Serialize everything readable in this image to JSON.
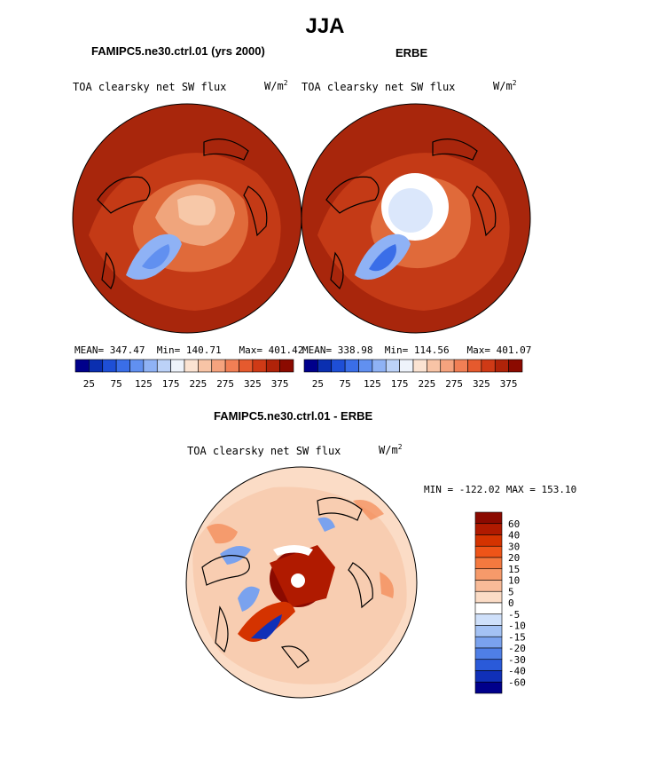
{
  "figure": {
    "title": "JJA"
  },
  "panel_left": {
    "title": "FAMIPC5.ne30.ctrl.01 (yrs 2000)",
    "variable": "TOA clearsky net SW flux",
    "units": "W/m",
    "units_exp": "2",
    "stats": {
      "mean_label": "MEAN=",
      "mean": "347.47",
      "min_label": "Min=",
      "min": "140.71",
      "max_label": "Max=",
      "max": "401.42"
    }
  },
  "panel_right": {
    "title": "ERBE",
    "variable": "TOA clearsky net SW flux",
    "units": "W/m",
    "units_exp": "2",
    "stats": {
      "mean_label": "MEAN=",
      "mean": "338.98",
      "min_label": "Min=",
      "min": "114.56",
      "max_label": "Max=",
      "max": "401.07"
    }
  },
  "panel_diff": {
    "title": "FAMIPC5.ne30.ctrl.01 - ERBE",
    "variable": "TOA clearsky net SW flux",
    "units": "W/m",
    "units_exp": "2",
    "minmax": "MIN = -122.02 MAX = 153.10"
  },
  "colorbar_abs": {
    "colors": [
      "#00008b",
      "#0a2fb0",
      "#1e4fd6",
      "#3a6ee8",
      "#6190f0",
      "#8fb2f5",
      "#bcd2f8",
      "#eef3fb",
      "#fbe3d2",
      "#f8c4a6",
      "#f5a37e",
      "#f17f55",
      "#e55a2e",
      "#cf3a16",
      "#b02309",
      "#8b0a00"
    ],
    "tick_labels": [
      "25",
      "75",
      "125",
      "175",
      "225",
      "275",
      "325",
      "375"
    ]
  },
  "colorbar_diff": {
    "colors": [
      "#8b0a00",
      "#b01a00",
      "#d43300",
      "#ee5418",
      "#f4793f",
      "#f69a6a",
      "#f8bb98",
      "#fbdcc6",
      "#ffffff",
      "#cfe0fa",
      "#a4c2f4",
      "#7aa2ee",
      "#4f7fe6",
      "#2a5ad9",
      "#1030b8",
      "#00008b"
    ],
    "tick_labels": [
      "60",
      "40",
      "30",
      "20",
      "15",
      "10",
      "5",
      "0",
      "-5",
      "-10",
      "-15",
      "-20",
      "-30",
      "-40",
      "-60"
    ]
  }
}
